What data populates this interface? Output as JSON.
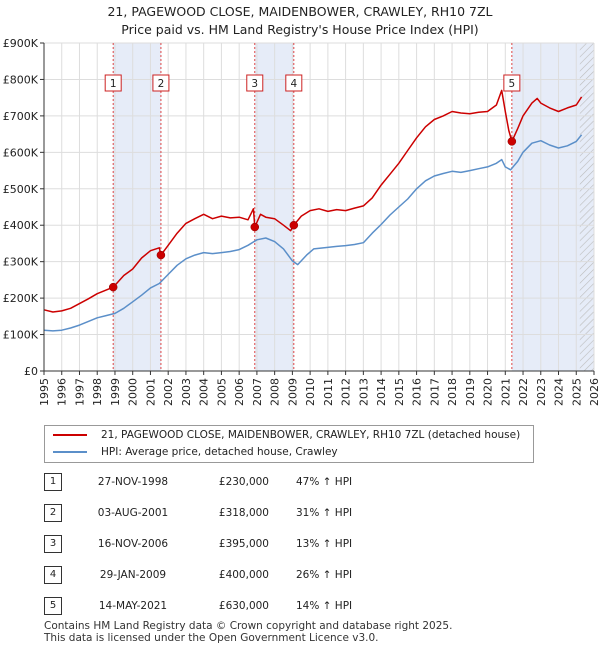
{
  "chart_data": {
    "type": "line",
    "title": "21, PAGEWOOD CLOSE, MAIDENBOWER, CRAWLEY, RH10 7ZL",
    "subtitle": "Price paid vs. HM Land Registry's House Price Index (HPI)",
    "xlim": [
      1995,
      2026
    ],
    "ylim": [
      0,
      900000
    ],
    "x_ticks": [
      "1995",
      "1996",
      "1997",
      "1998",
      "1999",
      "2000",
      "2001",
      "2002",
      "2003",
      "2004",
      "2005",
      "2006",
      "2007",
      "2008",
      "2009",
      "2010",
      "2011",
      "2012",
      "2013",
      "2014",
      "2015",
      "2016",
      "2017",
      "2018",
      "2019",
      "2020",
      "2021",
      "2022",
      "2023",
      "2024",
      "2025",
      "2026"
    ],
    "y_ticks": [
      {
        "value": 0,
        "label": "£0"
      },
      {
        "value": 100000,
        "label": "£100K"
      },
      {
        "value": 200000,
        "label": "£200K"
      },
      {
        "value": 300000,
        "label": "£300K"
      },
      {
        "value": 400000,
        "label": "£400K"
      },
      {
        "value": 500000,
        "label": "£500K"
      },
      {
        "value": 600000,
        "label": "£600K"
      },
      {
        "value": 700000,
        "label": "£700K"
      },
      {
        "value": 800000,
        "label": "£800K"
      },
      {
        "value": 900000,
        "label": "£900K"
      }
    ],
    "grid": true,
    "shaded_ranges": [
      [
        1998.9,
        2001.6
      ],
      [
        2006.88,
        2009.08
      ],
      [
        2021.37,
        2026.0
      ]
    ],
    "hatched_from": 2025.2,
    "markers": [
      {
        "label": "1",
        "x": 1998.9,
        "y": 230000
      },
      {
        "label": "2",
        "x": 2001.59,
        "y": 318000
      },
      {
        "label": "3",
        "x": 2006.88,
        "y": 395000
      },
      {
        "label": "4",
        "x": 2009.08,
        "y": 400000
      },
      {
        "label": "5",
        "x": 2021.37,
        "y": 630000
      }
    ],
    "series": [
      {
        "name": "21, PAGEWOOD CLOSE, MAIDENBOWER, CRAWLEY, RH10 7ZL (detached house)",
        "color": "#cc0000",
        "x": [
          1995.0,
          1995.5,
          1996.0,
          1996.5,
          1997.0,
          1997.5,
          1998.0,
          1998.5,
          1998.9,
          1999.5,
          2000.0,
          2000.5,
          2001.0,
          2001.5,
          2001.59,
          2002.0,
          2002.5,
          2003.0,
          2003.5,
          2004.0,
          2004.5,
          2005.0,
          2005.5,
          2006.0,
          2006.5,
          2006.8,
          2006.88,
          2007.2,
          2007.5,
          2008.0,
          2008.5,
          2008.9,
          2009.08,
          2009.5,
          2010.0,
          2010.5,
          2011.0,
          2011.5,
          2012.0,
          2012.5,
          2013.0,
          2013.5,
          2014.0,
          2014.5,
          2015.0,
          2015.5,
          2016.0,
          2016.5,
          2017.0,
          2017.5,
          2018.0,
          2018.5,
          2019.0,
          2019.5,
          2020.0,
          2020.5,
          2020.8,
          2021.0,
          2021.2,
          2021.37,
          2021.7,
          2022.0,
          2022.5,
          2022.8,
          2023.0,
          2023.5,
          2024.0,
          2024.5,
          2025.0,
          2025.3
        ],
        "values": [
          168000,
          162000,
          165000,
          172000,
          185000,
          198000,
          212000,
          222000,
          230000,
          262000,
          280000,
          310000,
          330000,
          338000,
          318000,
          345000,
          378000,
          405000,
          418000,
          430000,
          418000,
          425000,
          420000,
          422000,
          415000,
          445000,
          395000,
          430000,
          422000,
          418000,
          400000,
          385000,
          400000,
          425000,
          440000,
          445000,
          438000,
          443000,
          440000,
          447000,
          453000,
          475000,
          510000,
          540000,
          570000,
          605000,
          640000,
          670000,
          690000,
          700000,
          712000,
          708000,
          706000,
          710000,
          712000,
          730000,
          770000,
          712000,
          660000,
          630000,
          665000,
          700000,
          735000,
          748000,
          735000,
          722000,
          712000,
          722000,
          730000,
          752000
        ]
      },
      {
        "name": "HPI: Average price, detached house, Crawley",
        "color": "#5b8fc9",
        "x": [
          1995.0,
          1995.5,
          1996.0,
          1996.5,
          1997.0,
          1997.5,
          1998.0,
          1998.5,
          1999.0,
          1999.5,
          2000.0,
          2000.5,
          2001.0,
          2001.5,
          2002.0,
          2002.5,
          2003.0,
          2003.5,
          2004.0,
          2004.5,
          2005.0,
          2005.5,
          2006.0,
          2006.5,
          2007.0,
          2007.5,
          2008.0,
          2008.5,
          2009.0,
          2009.3,
          2009.8,
          2010.2,
          2010.8,
          2011.5,
          2012.0,
          2012.5,
          2013.0,
          2013.5,
          2014.0,
          2014.5,
          2015.0,
          2015.5,
          2016.0,
          2016.5,
          2017.0,
          2017.5,
          2018.0,
          2018.5,
          2019.0,
          2019.5,
          2020.0,
          2020.5,
          2020.8,
          2021.0,
          2021.3,
          2021.7,
          2022.0,
          2022.5,
          2023.0,
          2023.5,
          2024.0,
          2024.5,
          2025.0,
          2025.3
        ],
        "values": [
          112000,
          110000,
          112000,
          118000,
          126000,
          136000,
          146000,
          152000,
          158000,
          172000,
          190000,
          208000,
          228000,
          240000,
          265000,
          290000,
          308000,
          318000,
          325000,
          322000,
          325000,
          328000,
          333000,
          345000,
          360000,
          365000,
          355000,
          335000,
          302000,
          292000,
          318000,
          335000,
          338000,
          342000,
          344000,
          347000,
          352000,
          378000,
          402000,
          428000,
          450000,
          472000,
          500000,
          522000,
          535000,
          542000,
          548000,
          545000,
          550000,
          555000,
          560000,
          570000,
          580000,
          560000,
          552000,
          575000,
          600000,
          625000,
          632000,
          620000,
          612000,
          618000,
          630000,
          648000
        ]
      }
    ]
  },
  "legend": {
    "items": [
      {
        "label": "21, PAGEWOOD CLOSE, MAIDENBOWER, CRAWLEY, RH10 7ZL (detached house)",
        "color": "#cc0000"
      },
      {
        "label": "HPI: Average price, detached house, Crawley",
        "color": "#5b8fc9"
      }
    ]
  },
  "sales": [
    {
      "num": "1",
      "date": "27-NOV-1998",
      "price": "£230,000",
      "hpi": "47% ↑ HPI"
    },
    {
      "num": "2",
      "date": "03-AUG-2001",
      "price": "£318,000",
      "hpi": "31% ↑ HPI"
    },
    {
      "num": "3",
      "date": "16-NOV-2006",
      "price": "£395,000",
      "hpi": "13% ↑ HPI"
    },
    {
      "num": "4",
      "date": "29-JAN-2009",
      "price": "£400,000",
      "hpi": "26% ↑ HPI"
    },
    {
      "num": "5",
      "date": "14-MAY-2021",
      "price": "£630,000",
      "hpi": "14% ↑ HPI"
    }
  ],
  "footer": {
    "line1": "Contains HM Land Registry data © Crown copyright and database right 2025.",
    "line2": "This data is licensed under the Open Government Licence v3.0."
  }
}
